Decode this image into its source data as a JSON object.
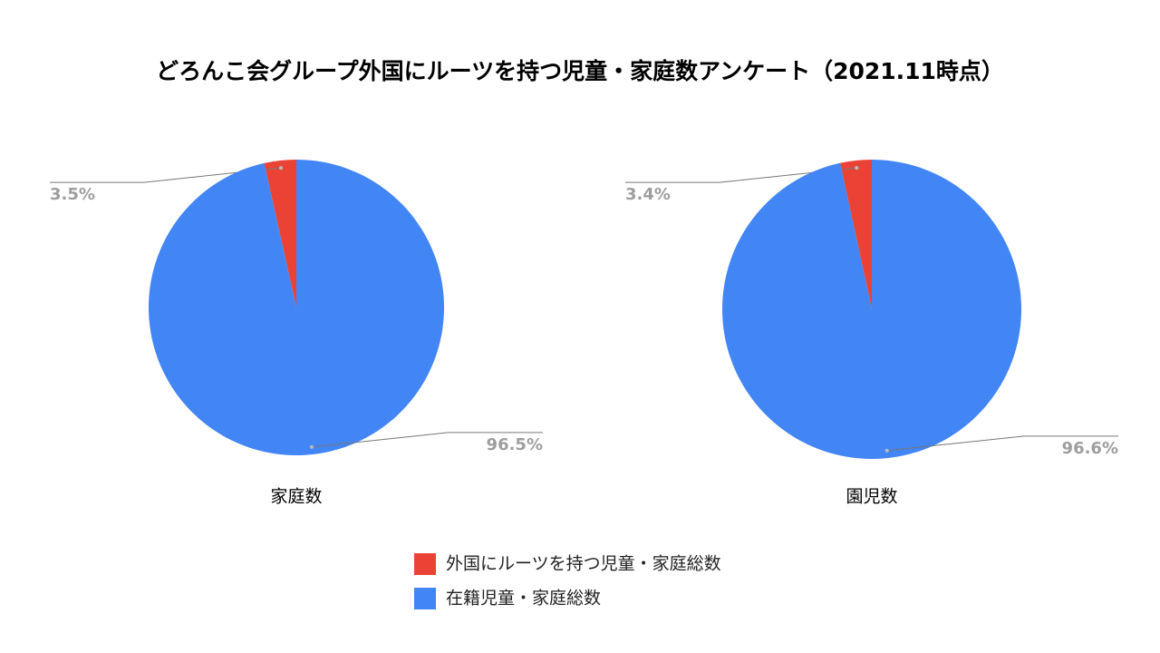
{
  "title": "どろんこ会グループ外国にルーツを持つ児童・家庭数アンケート（2021.11時点）",
  "chart_data": {
    "type": "pie",
    "categories": [
      "家庭数",
      "園児数"
    ],
    "series": [
      {
        "name": "外国にルーツを持つ児童・家庭総数",
        "color": "#ea4335",
        "values": [
          3.5,
          3.4
        ],
        "value_labels": [
          "3.5%",
          "3.4%"
        ]
      },
      {
        "name": "在籍児童・家庭総数",
        "color": "#4285f4",
        "values": [
          96.5,
          96.6
        ],
        "value_labels": [
          "96.5%",
          "96.6%"
        ]
      }
    ]
  }
}
